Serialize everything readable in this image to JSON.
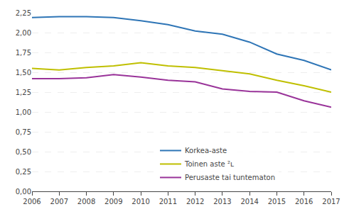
{
  "chart_data": {
    "type": "line",
    "x": [
      2006,
      2007,
      2008,
      2009,
      2010,
      2011,
      2012,
      2013,
      2014,
      2015,
      2016,
      2017
    ],
    "series": [
      {
        "name": "Korkea-aste",
        "color": "#2E75B6",
        "values": [
          2.19,
          2.2,
          2.2,
          2.19,
          2.15,
          2.1,
          2.02,
          1.98,
          1.88,
          1.73,
          1.65,
          1.53
        ]
      },
      {
        "name": "Toinen aste ²ʟ",
        "color": "#BFBF00",
        "values": [
          1.55,
          1.53,
          1.56,
          1.58,
          1.62,
          1.58,
          1.56,
          1.52,
          1.48,
          1.4,
          1.33,
          1.25
        ]
      },
      {
        "name": "Perusaste tai tuntematon",
        "color": "#993399",
        "values": [
          1.42,
          1.42,
          1.43,
          1.47,
          1.44,
          1.4,
          1.38,
          1.29,
          1.26,
          1.25,
          1.14,
          1.06
        ]
      }
    ],
    "xlim": [
      2006,
      2017
    ],
    "xticks": [
      2006,
      2007,
      2008,
      2009,
      2010,
      2011,
      2012,
      2013,
      2014,
      2015,
      2016,
      2017
    ],
    "ylim": [
      0.0,
      2.25
    ],
    "yticks": [
      {
        "value": 0.0,
        "label": "0,00"
      },
      {
        "value": 0.25,
        "label": "0,25"
      },
      {
        "value": 0.5,
        "label": "0,50"
      },
      {
        "value": 0.75,
        "label": "0,75"
      },
      {
        "value": 1.0,
        "label": "1,00"
      },
      {
        "value": 1.25,
        "label": "1,25"
      },
      {
        "value": 1.5,
        "label": "1,50"
      },
      {
        "value": 1.75,
        "label": "1,75"
      },
      {
        "value": 2.0,
        "label": "2,00"
      },
      {
        "value": 2.25,
        "label": "2,25"
      }
    ],
    "grid": true,
    "legend": "lower center"
  }
}
